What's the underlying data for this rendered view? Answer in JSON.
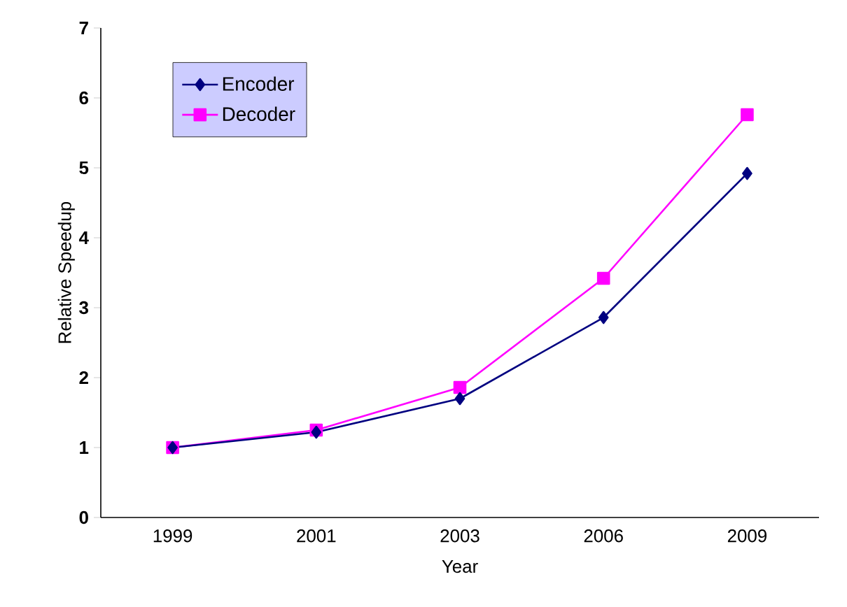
{
  "chart_data": {
    "type": "line",
    "xlabel": "Year",
    "ylabel": "Relative Speedup",
    "categories": [
      "1999",
      "2001",
      "2003",
      "2006",
      "2009"
    ],
    "series": [
      {
        "name": "Encoder",
        "color": "#000080",
        "marker": "diamond",
        "values": [
          1.0,
          1.22,
          1.7,
          2.86,
          4.92
        ]
      },
      {
        "name": "Decoder",
        "color": "#ff00ff",
        "marker": "square",
        "values": [
          1.0,
          1.25,
          1.86,
          3.42,
          5.76
        ]
      }
    ],
    "ylim": [
      0,
      7
    ],
    "yticks": [
      0,
      1,
      2,
      3,
      4,
      5,
      6,
      7
    ],
    "grid": false,
    "legend": "top left",
    "line_style": "solid"
  }
}
